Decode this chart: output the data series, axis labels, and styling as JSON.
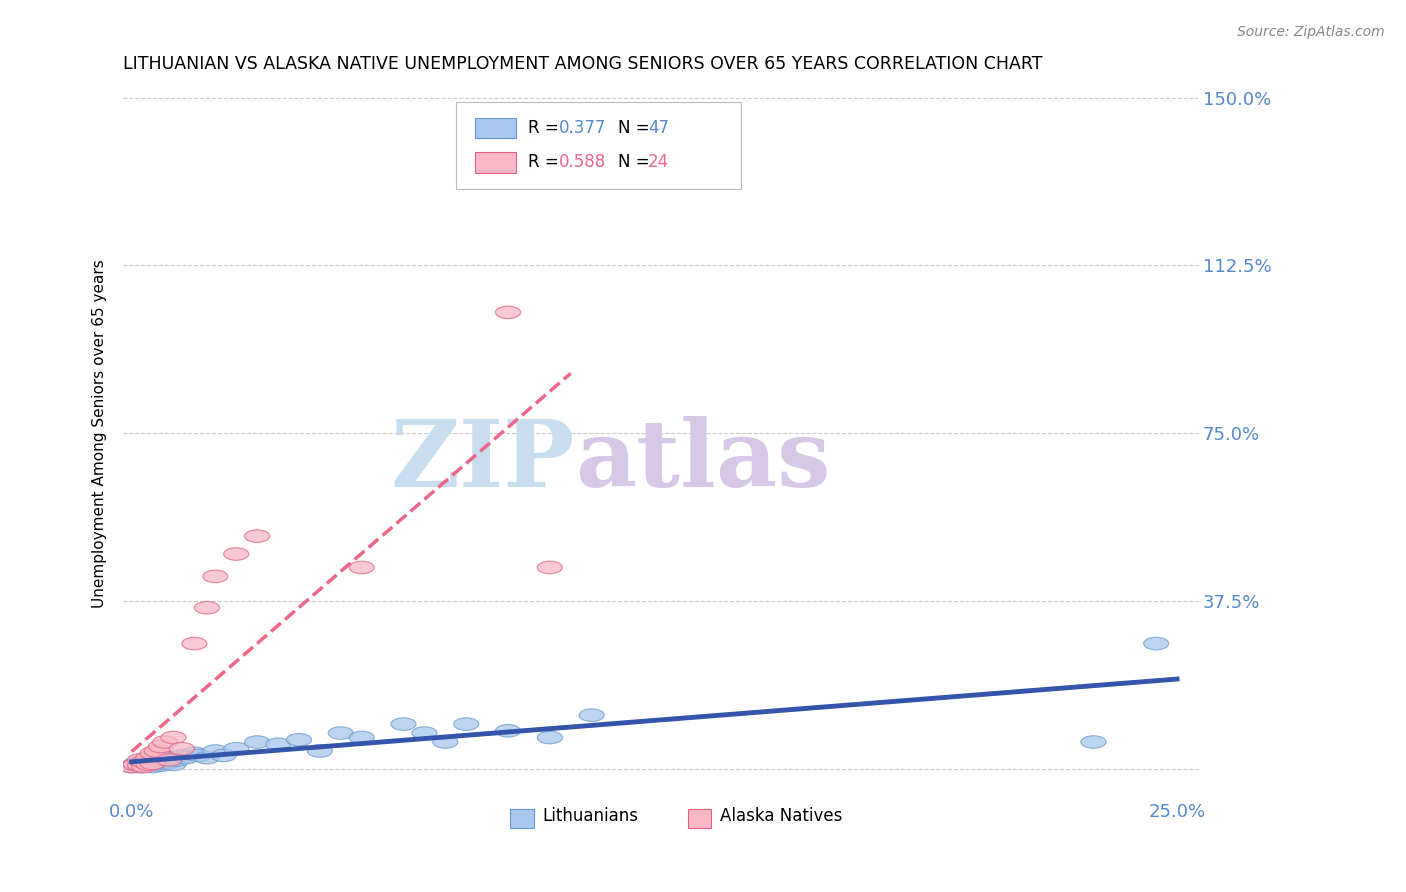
{
  "title": "LITHUANIAN VS ALASKA NATIVE UNEMPLOYMENT AMONG SENIORS OVER 65 YEARS CORRELATION CHART",
  "source": "Source: ZipAtlas.com",
  "ylabel": "Unemployment Among Seniors over 65 years",
  "xlim": [
    -0.002,
    0.255
  ],
  "ylim": [
    -0.02,
    1.52
  ],
  "xticks": [
    0.0,
    0.25
  ],
  "xtick_labels": [
    "0.0%",
    "25.0%"
  ],
  "yticks": [
    0.0,
    0.375,
    0.75,
    1.125,
    1.5
  ],
  "ytick_labels": [
    "",
    "37.5%",
    "75.0%",
    "112.5%",
    "150.0%"
  ],
  "color_lith_fill": "#A8C8EE",
  "color_lith_edge": "#6699CC",
  "color_alaska_fill": "#F8B8C8",
  "color_alaska_edge": "#E06080",
  "color_line_lith": "#3355AA",
  "color_line_alaska": "#EE6688",
  "color_blue": "#5588CC",
  "color_pink": "#EE6688",
  "watermark_zip": "ZIP",
  "watermark_atlas": "atlas",
  "watermark_color_zip": "#C8DDF0",
  "watermark_color_atlas": "#D8C8E8",
  "lith_x": [
    0.0,
    0.001,
    0.001,
    0.002,
    0.002,
    0.002,
    0.003,
    0.003,
    0.003,
    0.004,
    0.004,
    0.005,
    0.005,
    0.005,
    0.006,
    0.006,
    0.007,
    0.007,
    0.008,
    0.008,
    0.009,
    0.01,
    0.01,
    0.011,
    0.012,
    0.013,
    0.015,
    0.016,
    0.018,
    0.02,
    0.022,
    0.025,
    0.03,
    0.035,
    0.04,
    0.045,
    0.05,
    0.055,
    0.065,
    0.07,
    0.075,
    0.08,
    0.09,
    0.1,
    0.11,
    0.23,
    0.245
  ],
  "lith_y": [
    0.005,
    0.008,
    0.012,
    0.005,
    0.01,
    0.015,
    0.008,
    0.015,
    0.02,
    0.01,
    0.018,
    0.005,
    0.012,
    0.022,
    0.01,
    0.02,
    0.008,
    0.025,
    0.012,
    0.02,
    0.015,
    0.01,
    0.025,
    0.02,
    0.03,
    0.025,
    0.035,
    0.03,
    0.025,
    0.04,
    0.03,
    0.045,
    0.06,
    0.055,
    0.065,
    0.04,
    0.08,
    0.07,
    0.1,
    0.08,
    0.06,
    0.1,
    0.085,
    0.07,
    0.12,
    0.06,
    0.28
  ],
  "alaska_x": [
    0.0,
    0.001,
    0.002,
    0.002,
    0.003,
    0.003,
    0.004,
    0.004,
    0.005,
    0.005,
    0.006,
    0.007,
    0.008,
    0.009,
    0.01,
    0.012,
    0.015,
    0.018,
    0.02,
    0.025,
    0.03,
    0.055,
    0.09,
    0.1
  ],
  "alaska_y": [
    0.005,
    0.01,
    0.008,
    0.02,
    0.005,
    0.015,
    0.01,
    0.025,
    0.012,
    0.035,
    0.04,
    0.05,
    0.06,
    0.02,
    0.07,
    0.045,
    0.28,
    0.36,
    0.43,
    0.48,
    0.52,
    0.45,
    1.02,
    0.45
  ]
}
